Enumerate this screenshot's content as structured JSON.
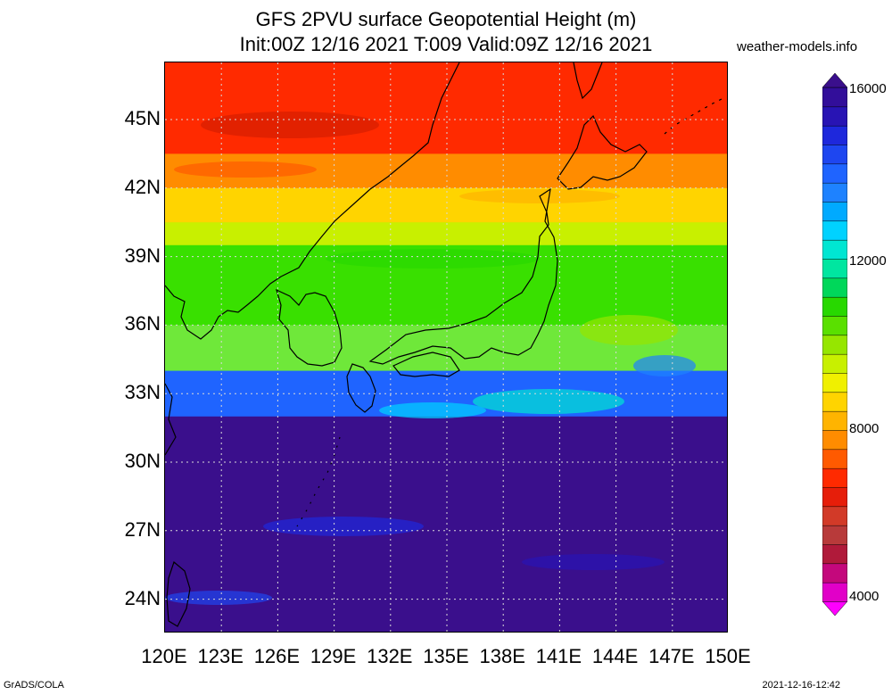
{
  "title": {
    "line1": "GFS 2PVU surface Geopotential Height (m)",
    "line2": "Init:00Z 12/16 2021 T:009 Valid:09Z 12/16 2021"
  },
  "credit": "weather-models.info",
  "footer": {
    "left": "GrADS/COLA",
    "right": "2021-12-16-12:42"
  },
  "map": {
    "region": "Japan / East Asia",
    "lon_range": [
      120,
      150
    ],
    "lat_range": [
      22.5,
      47.5
    ],
    "grid": true,
    "x_ticks": [
      "120E",
      "123E",
      "126E",
      "129E",
      "132E",
      "135E",
      "138E",
      "141E",
      "144E",
      "147E",
      "150E"
    ],
    "y_ticks": [
      "45N",
      "42N",
      "39N",
      "36N",
      "33N",
      "30N",
      "27N",
      "24N"
    ],
    "field_bands": [
      {
        "lat_top": 47.5,
        "lat_bottom": 43.5,
        "value": 7500,
        "color": "#ff2a00"
      },
      {
        "lat_top": 43.5,
        "lat_bottom": 42.0,
        "value": 8000,
        "color": "#ff8c00"
      },
      {
        "lat_top": 42.0,
        "lat_bottom": 40.5,
        "value": 9000,
        "color": "#ffd400"
      },
      {
        "lat_top": 40.5,
        "lat_bottom": 39.5,
        "value": 10000,
        "color": "#c8f000"
      },
      {
        "lat_top": 39.5,
        "lat_bottom": 36.0,
        "value": 11000,
        "color": "#39e000"
      },
      {
        "lat_top": 36.0,
        "lat_bottom": 34.0,
        "value": 11500,
        "color": "#6fe83a"
      },
      {
        "lat_top": 34.0,
        "lat_bottom": 32.0,
        "value": 13500,
        "color": "#1f64ff"
      },
      {
        "lat_top": 32.0,
        "lat_bottom": 22.5,
        "value": 16000,
        "color": "#3a0f8c"
      }
    ]
  },
  "colorbar": {
    "labels": [
      "16000",
      "12000",
      "8000",
      "4000"
    ],
    "steps": [
      "#ff00ff",
      "#e100c8",
      "#c4087c",
      "#b01a3a",
      "#b83a3a",
      "#d23a28",
      "#e61e0a",
      "#ff2a00",
      "#ff5a00",
      "#ff8c00",
      "#ffb400",
      "#ffd400",
      "#f0f000",
      "#c8f000",
      "#96e600",
      "#5ae000",
      "#28d800",
      "#00d75a",
      "#00e6a0",
      "#00e6d2",
      "#00d2ff",
      "#00aaff",
      "#1e82ff",
      "#1f64ff",
      "#1e46f0",
      "#1e28dc",
      "#2814b4",
      "#320e9a",
      "#3a0f8c"
    ]
  }
}
